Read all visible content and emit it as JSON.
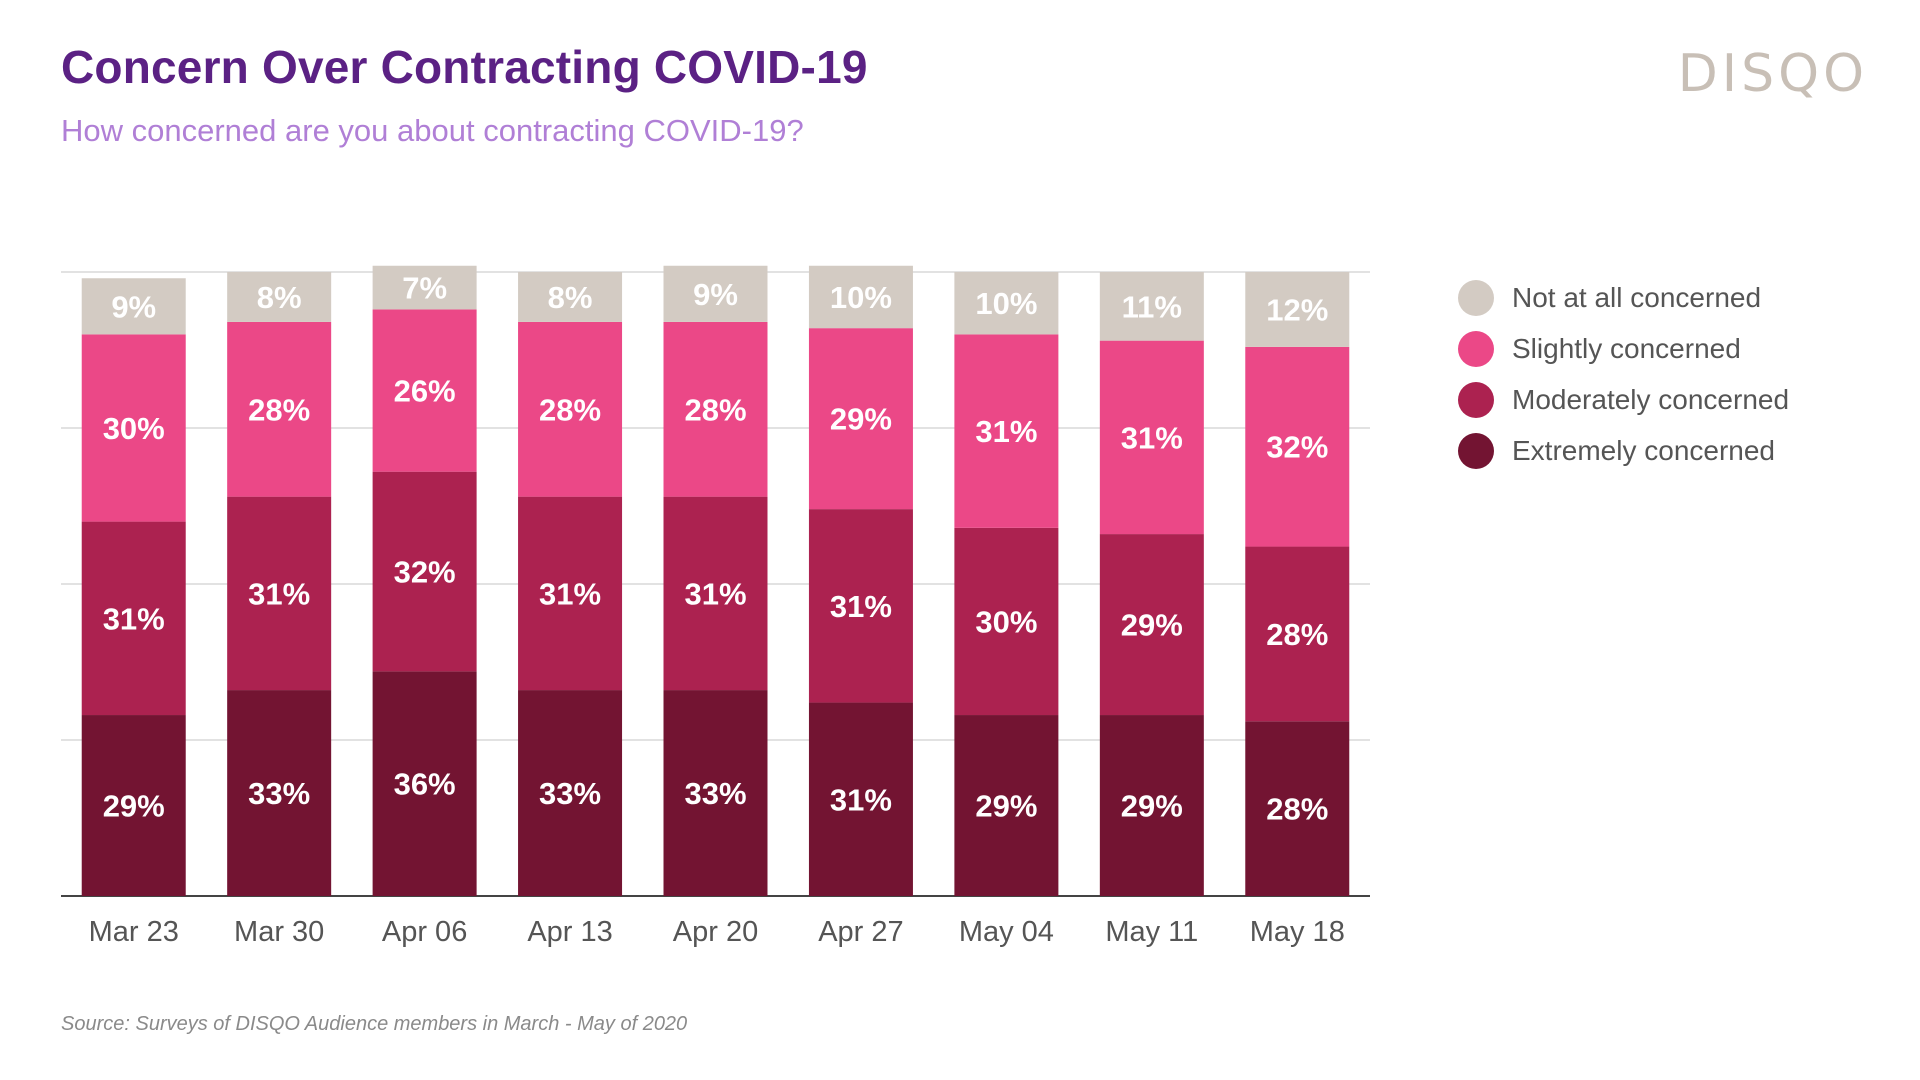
{
  "header": {
    "title": "Concern Over Contracting COVID-19",
    "subtitle": "How concerned are you about contracting COVID-19?",
    "brand": "DISQO"
  },
  "footer": {
    "source": "Source: Surveys of DISQO Audience members in March - May of 2020"
  },
  "chart_data": {
    "type": "bar",
    "stacked": true,
    "orientation": "vertical",
    "title": "Concern Over Contracting COVID-19",
    "subtitle": "How concerned are you about contracting COVID-19?",
    "xlabel": "",
    "ylabel": "",
    "ylim": [
      0,
      100
    ],
    "grid": true,
    "legend_position": "right",
    "categories": [
      "Mar 23",
      "Mar 30",
      "Apr 06",
      "Apr 13",
      "Apr 20",
      "Apr 27",
      "May 04",
      "May 11",
      "May 18"
    ],
    "series": [
      {
        "name": "Extremely concerned",
        "color": "#731432",
        "values": [
          29,
          33,
          36,
          33,
          33,
          31,
          29,
          29,
          28
        ]
      },
      {
        "name": "Moderately concerned",
        "color": "#ac2250",
        "values": [
          31,
          31,
          32,
          31,
          31,
          31,
          30,
          29,
          28
        ]
      },
      {
        "name": "Slightly concerned",
        "color": "#eb4887",
        "values": [
          30,
          28,
          26,
          28,
          28,
          29,
          31,
          31,
          32
        ]
      },
      {
        "name": "Not at all concerned",
        "color": "#d3cbc3",
        "values": [
          9,
          8,
          7,
          8,
          9,
          10,
          10,
          11,
          12
        ]
      }
    ],
    "legend_order": [
      "Not at all concerned",
      "Slightly concerned",
      "Moderately concerned",
      "Extremely concerned"
    ]
  }
}
